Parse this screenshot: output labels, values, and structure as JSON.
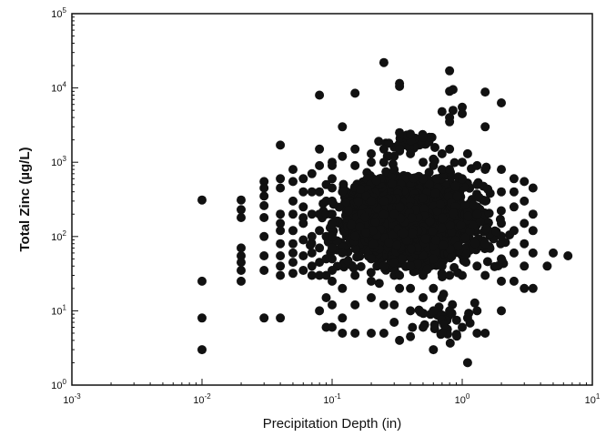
{
  "chart_data": {
    "type": "scatter",
    "title": "",
    "xlabel": "Precipitation Depth (in)",
    "ylabel": "Total Zinc (µg/L)",
    "x_scale": "log",
    "y_scale": "log",
    "xlim": [
      0.001,
      10
    ],
    "ylim": [
      1,
      100000
    ],
    "grid": false,
    "legend": "none",
    "marker_color": "#111111",
    "x_ticks": [
      {
        "value": 0.001,
        "base": "10",
        "exp": "-3"
      },
      {
        "value": 0.01,
        "base": "10",
        "exp": "-2"
      },
      {
        "value": 0.1,
        "base": "10",
        "exp": "-1"
      },
      {
        "value": 1,
        "base": "10",
        "exp": "0"
      },
      {
        "value": 10,
        "base": "10",
        "exp": "1"
      }
    ],
    "y_ticks": [
      {
        "value": 1,
        "base": "10",
        "exp": "0"
      },
      {
        "value": 10,
        "base": "10",
        "exp": "1"
      },
      {
        "value": 100,
        "base": "10",
        "exp": "2"
      },
      {
        "value": 1000,
        "base": "10",
        "exp": "3"
      },
      {
        "value": 10000,
        "base": "10",
        "exp": "4"
      },
      {
        "value": 100000,
        "base": "10",
        "exp": "5"
      }
    ],
    "points": [
      [
        0.01,
        310
      ],
      [
        0.01,
        25
      ],
      [
        0.01,
        8
      ],
      [
        0.01,
        3
      ],
      [
        0.02,
        310
      ],
      [
        0.02,
        230
      ],
      [
        0.02,
        180
      ],
      [
        0.02,
        70
      ],
      [
        0.02,
        55
      ],
      [
        0.02,
        45
      ],
      [
        0.02,
        35
      ],
      [
        0.02,
        25
      ],
      [
        0.03,
        550
      ],
      [
        0.03,
        450
      ],
      [
        0.03,
        350
      ],
      [
        0.03,
        260
      ],
      [
        0.03,
        180
      ],
      [
        0.03,
        100
      ],
      [
        0.03,
        55
      ],
      [
        0.03,
        35
      ],
      [
        0.03,
        8
      ],
      [
        0.04,
        1700
      ],
      [
        0.04,
        600
      ],
      [
        0.04,
        450
      ],
      [
        0.04,
        200
      ],
      [
        0.04,
        150
      ],
      [
        0.04,
        120
      ],
      [
        0.04,
        80
      ],
      [
        0.04,
        55
      ],
      [
        0.04,
        40
      ],
      [
        0.04,
        30
      ],
      [
        0.04,
        8
      ],
      [
        0.05,
        800
      ],
      [
        0.05,
        550
      ],
      [
        0.05,
        300
      ],
      [
        0.05,
        200
      ],
      [
        0.05,
        120
      ],
      [
        0.05,
        80
      ],
      [
        0.05,
        60
      ],
      [
        0.05,
        45
      ],
      [
        0.05,
        32
      ],
      [
        0.06,
        600
      ],
      [
        0.06,
        400
      ],
      [
        0.06,
        250
      ],
      [
        0.06,
        150
      ],
      [
        0.06,
        90
      ],
      [
        0.06,
        55
      ],
      [
        0.06,
        35
      ],
      [
        0.07,
        700
      ],
      [
        0.07,
        400
      ],
      [
        0.07,
        200
      ],
      [
        0.07,
        100
      ],
      [
        0.07,
        60
      ],
      [
        0.07,
        40
      ],
      [
        0.07,
        30
      ],
      [
        0.08,
        8000
      ],
      [
        0.08,
        1500
      ],
      [
        0.08,
        900
      ],
      [
        0.08,
        400
      ],
      [
        0.08,
        200
      ],
      [
        0.08,
        120
      ],
      [
        0.08,
        70
      ],
      [
        0.08,
        45
      ],
      [
        0.08,
        30
      ],
      [
        0.08,
        10
      ],
      [
        0.09,
        500
      ],
      [
        0.09,
        300
      ],
      [
        0.09,
        200
      ],
      [
        0.09,
        100
      ],
      [
        0.09,
        50
      ],
      [
        0.09,
        30
      ],
      [
        0.09,
        15
      ],
      [
        0.09,
        6
      ],
      [
        0.1,
        1000
      ],
      [
        0.1,
        900
      ],
      [
        0.1,
        600
      ],
      [
        0.1,
        450
      ],
      [
        0.1,
        300
      ],
      [
        0.1,
        200
      ],
      [
        0.1,
        150
      ],
      [
        0.1,
        100
      ],
      [
        0.1,
        70
      ],
      [
        0.1,
        50
      ],
      [
        0.1,
        35
      ],
      [
        0.1,
        25
      ],
      [
        0.1,
        12
      ],
      [
        0.1,
        6
      ],
      [
        0.12,
        3000
      ],
      [
        0.12,
        1200
      ],
      [
        0.12,
        400
      ],
      [
        0.12,
        60
      ],
      [
        0.12,
        20
      ],
      [
        0.12,
        8
      ],
      [
        0.12,
        5
      ],
      [
        0.15,
        8500
      ],
      [
        0.15,
        1500
      ],
      [
        0.15,
        900
      ],
      [
        0.15,
        100
      ],
      [
        0.15,
        30
      ],
      [
        0.15,
        12
      ],
      [
        0.15,
        5
      ],
      [
        0.2,
        1300
      ],
      [
        0.2,
        1000
      ],
      [
        0.2,
        300
      ],
      [
        0.2,
        50
      ],
      [
        0.2,
        25
      ],
      [
        0.2,
        15
      ],
      [
        0.2,
        5
      ],
      [
        0.25,
        22000
      ],
      [
        0.25,
        1500
      ],
      [
        0.25,
        1000
      ],
      [
        0.25,
        300
      ],
      [
        0.25,
        40
      ],
      [
        0.25,
        12
      ],
      [
        0.25,
        5
      ],
      [
        0.3,
        1200
      ],
      [
        0.3,
        800
      ],
      [
        0.3,
        200
      ],
      [
        0.3,
        30
      ],
      [
        0.3,
        12
      ],
      [
        0.3,
        7
      ],
      [
        0.33,
        11500
      ],
      [
        0.33,
        10500
      ],
      [
        0.33,
        2500
      ],
      [
        0.33,
        1500
      ],
      [
        0.33,
        30
      ],
      [
        0.33,
        20
      ],
      [
        0.33,
        4
      ],
      [
        0.4,
        2400
      ],
      [
        0.4,
        1300
      ],
      [
        0.4,
        40
      ],
      [
        0.4,
        20
      ],
      [
        0.4,
        10
      ],
      [
        0.4,
        4.5
      ],
      [
        0.5,
        2200
      ],
      [
        0.5,
        1000
      ],
      [
        0.5,
        600
      ],
      [
        0.5,
        30
      ],
      [
        0.5,
        15
      ],
      [
        0.5,
        6
      ],
      [
        0.6,
        1100
      ],
      [
        0.6,
        900
      ],
      [
        0.6,
        50
      ],
      [
        0.6,
        20
      ],
      [
        0.6,
        10
      ],
      [
        0.6,
        3
      ],
      [
        0.7,
        4800
      ],
      [
        0.7,
        1300
      ],
      [
        0.7,
        800
      ],
      [
        0.7,
        40
      ],
      [
        0.7,
        15
      ],
      [
        0.7,
        5
      ],
      [
        0.8,
        17000
      ],
      [
        0.8,
        9000
      ],
      [
        0.8,
        4000
      ],
      [
        0.8,
        3500
      ],
      [
        0.8,
        1500
      ],
      [
        0.8,
        800
      ],
      [
        0.8,
        30
      ],
      [
        0.8,
        10
      ],
      [
        0.85,
        9500
      ],
      [
        0.85,
        5000
      ],
      [
        1.0,
        5500
      ],
      [
        1.0,
        4500
      ],
      [
        1.0,
        1000
      ],
      [
        1.0,
        600
      ],
      [
        1.0,
        30
      ],
      [
        1.0,
        6
      ],
      [
        1.1,
        1300
      ],
      [
        1.1,
        2
      ],
      [
        1.1,
        8
      ],
      [
        1.3,
        900
      ],
      [
        1.3,
        500
      ],
      [
        1.3,
        200
      ],
      [
        1.3,
        40
      ],
      [
        1.3,
        10
      ],
      [
        1.3,
        5
      ],
      [
        1.5,
        8800
      ],
      [
        1.5,
        3000
      ],
      [
        1.5,
        800
      ],
      [
        1.5,
        300
      ],
      [
        1.5,
        80
      ],
      [
        1.5,
        30
      ],
      [
        1.5,
        5
      ],
      [
        2.0,
        6300
      ],
      [
        2.0,
        800
      ],
      [
        2.0,
        400
      ],
      [
        2.0,
        150
      ],
      [
        2.0,
        50
      ],
      [
        2.0,
        25
      ],
      [
        2.0,
        10
      ],
      [
        2.5,
        600
      ],
      [
        2.5,
        400
      ],
      [
        2.5,
        250
      ],
      [
        2.5,
        120
      ],
      [
        2.5,
        60
      ],
      [
        2.5,
        25
      ],
      [
        3.0,
        550
      ],
      [
        3.0,
        300
      ],
      [
        3.0,
        150
      ],
      [
        3.0,
        80
      ],
      [
        3.0,
        40
      ],
      [
        3.0,
        20
      ],
      [
        3.5,
        450
      ],
      [
        3.5,
        200
      ],
      [
        3.5,
        120
      ],
      [
        3.5,
        60
      ],
      [
        3.5,
        20
      ],
      [
        4.5,
        40
      ],
      [
        5.0,
        60
      ],
      [
        6.5,
        55
      ]
    ],
    "dense_clusters": [
      {
        "x_range": [
          0.1,
          1.2
        ],
        "y_range": [
          40,
          900
        ],
        "count": 1600
      },
      {
        "x_range": [
          0.08,
          2.5
        ],
        "y_range": [
          20,
          1300
        ],
        "count": 1000
      },
      {
        "x_range": [
          0.05,
          3.5
        ],
        "y_range": [
          25,
          600
        ],
        "count": 450
      },
      {
        "x_range": [
          0.2,
          0.9
        ],
        "y_range": [
          1300,
          2500
        ],
        "count": 40
      },
      {
        "x_range": [
          0.3,
          1.5
        ],
        "y_range": [
          3,
          20
        ],
        "count": 35
      }
    ]
  }
}
